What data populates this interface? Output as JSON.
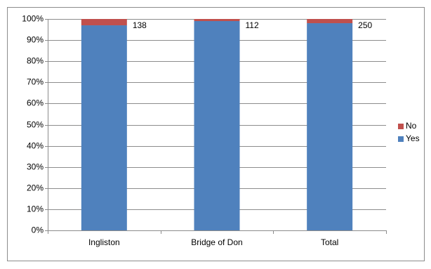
{
  "chart_data": {
    "type": "stacked_bar_100",
    "categories": [
      "Ingliston",
      "Bridge of Don",
      "Total"
    ],
    "series": [
      {
        "name": "Yes",
        "color": "#4f81bd",
        "values": [
          97,
          99,
          98
        ]
      },
      {
        "name": "No",
        "color": "#c0504d",
        "values": [
          3,
          1,
          2
        ]
      }
    ],
    "totals": [
      138,
      112,
      250
    ],
    "ylim": [
      0,
      100
    ],
    "yticks": [
      {
        "value": 0,
        "label": "0%"
      },
      {
        "value": 10,
        "label": "10%"
      },
      {
        "value": 20,
        "label": "20%"
      },
      {
        "value": 30,
        "label": "30%"
      },
      {
        "value": 40,
        "label": "40%"
      },
      {
        "value": 50,
        "label": "50%"
      },
      {
        "value": 60,
        "label": "60%"
      },
      {
        "value": 70,
        "label": "70%"
      },
      {
        "value": 80,
        "label": "80%"
      },
      {
        "value": 90,
        "label": "90%"
      },
      {
        "value": 100,
        "label": "100%"
      }
    ],
    "grid": true,
    "legend": "right"
  }
}
